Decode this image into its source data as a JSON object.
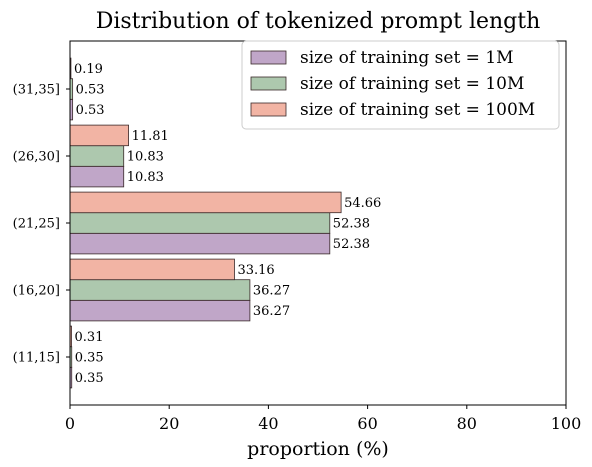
{
  "chart_data": {
    "type": "bar",
    "orientation": "horizontal",
    "title": "Distribution of tokenized prompt length",
    "xlabel": "proportion (%)",
    "ylabel": "",
    "xlim": [
      0,
      100
    ],
    "xticks": [
      "0",
      "20",
      "40",
      "60",
      "80",
      "100"
    ],
    "categories": [
      "(11,15]",
      "(16,20]",
      "(21,25]",
      "(26,30]",
      "(31,35]"
    ],
    "series": [
      {
        "name": "size of training set = 1M",
        "values": [
          0.35,
          36.27,
          52.38,
          10.83,
          0.53
        ],
        "labels": [
          "0.35",
          "36.27",
          "52.38",
          "10.83",
          "0.53"
        ],
        "color": "#c0a6c8"
      },
      {
        "name": "size of training set = 10M",
        "values": [
          0.35,
          36.27,
          52.38,
          10.83,
          0.53
        ],
        "labels": [
          "0.35",
          "36.27",
          "52.38",
          "10.83",
          "0.53"
        ],
        "color": "#adc8ae"
      },
      {
        "name": "size of training set = 100M",
        "values": [
          0.31,
          33.16,
          54.66,
          11.81,
          0.19
        ],
        "labels": [
          "0.31",
          "33.16",
          "54.66",
          "11.81",
          "0.19"
        ],
        "color": "#f2b4a4"
      }
    ],
    "legend_position": "top-right",
    "grid": false
  }
}
